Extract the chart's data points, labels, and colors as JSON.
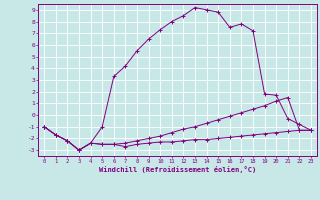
{
  "xlabel": "Windchill (Refroidissement éolien,°C)",
  "bg_color": "#c8e8e8",
  "grid_color": "#ffffff",
  "line_color": "#800080",
  "xlim": [
    -0.5,
    23.5
  ],
  "ylim": [
    -3.5,
    9.5
  ],
  "yticks": [
    -3,
    -2,
    -1,
    0,
    1,
    2,
    3,
    4,
    5,
    6,
    7,
    8,
    9
  ],
  "xticks": [
    0,
    1,
    2,
    3,
    4,
    5,
    6,
    7,
    8,
    9,
    10,
    11,
    12,
    13,
    14,
    15,
    16,
    17,
    18,
    19,
    20,
    21,
    22,
    23
  ],
  "line1_x": [
    0,
    1,
    2,
    3,
    4,
    5,
    6,
    7,
    8,
    9,
    10,
    11,
    12,
    13,
    14,
    15,
    16,
    17,
    18,
    19,
    20,
    21,
    22,
    23
  ],
  "line1_y": [
    -1.0,
    -1.7,
    -2.2,
    -3.0,
    -2.4,
    -2.5,
    -2.5,
    -2.7,
    -2.5,
    -2.4,
    -2.3,
    -2.3,
    -2.2,
    -2.1,
    -2.1,
    -2.0,
    -1.9,
    -1.8,
    -1.7,
    -1.6,
    -1.5,
    -1.4,
    -1.3,
    -1.3
  ],
  "line2_x": [
    0,
    1,
    2,
    3,
    4,
    5,
    6,
    7,
    8,
    9,
    10,
    11,
    12,
    13,
    14,
    15,
    16,
    17,
    18,
    19,
    20,
    21,
    22,
    23
  ],
  "line2_y": [
    -1.0,
    -1.7,
    -2.2,
    -3.0,
    -2.4,
    -2.5,
    -2.5,
    -2.4,
    -2.2,
    -2.0,
    -1.8,
    -1.5,
    -1.2,
    -1.0,
    -0.7,
    -0.4,
    -0.1,
    0.2,
    0.5,
    0.8,
    1.2,
    1.5,
    -1.3,
    -1.3
  ],
  "line3_x": [
    0,
    1,
    2,
    3,
    4,
    5,
    6,
    7,
    8,
    9,
    10,
    11,
    12,
    13,
    14,
    15,
    16,
    17,
    18,
    19,
    20,
    21,
    22,
    23
  ],
  "line3_y": [
    -1.0,
    -1.7,
    -2.2,
    -3.0,
    -2.4,
    -1.0,
    3.3,
    4.2,
    5.5,
    6.5,
    7.3,
    8.0,
    8.5,
    9.2,
    9.0,
    8.8,
    7.5,
    7.8,
    7.2,
    1.8,
    1.7,
    -0.3,
    -0.8,
    -1.3
  ]
}
